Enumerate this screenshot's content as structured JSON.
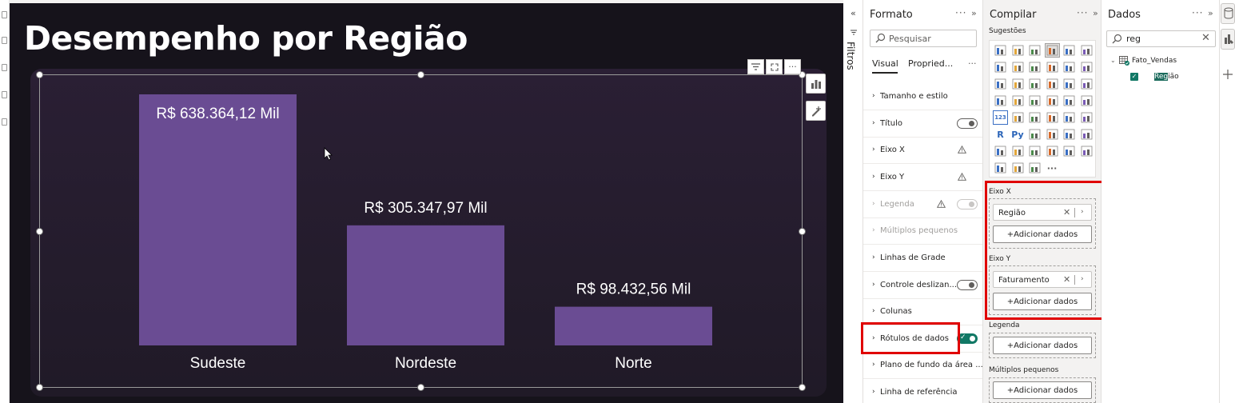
{
  "report": {
    "title": "Desempenho por Região"
  },
  "filters_strip": {
    "label": "Filtros"
  },
  "chart_data": {
    "type": "bar",
    "categories": [
      "Sudeste",
      "Nordeste",
      "Norte"
    ],
    "values": [
      638364.12,
      305347.97,
      98432.56
    ],
    "data_labels": [
      "R$ 638.364,12 Mil",
      "R$ 305.347,97 Mil",
      "R$ 98.432,56 Mil"
    ],
    "title": "",
    "xlabel": "",
    "ylabel": "",
    "ylim": [
      0,
      638364.12
    ],
    "grid": false,
    "legend": "none",
    "bar_color": "#6a4c93",
    "label_color": "#ffffff"
  },
  "format_pane": {
    "title": "Formato",
    "search_placeholder": "Pesquisar",
    "tabs": [
      "Visual",
      "Propried..."
    ],
    "sections": [
      {
        "label": "Tamanho e estilo"
      },
      {
        "label": "Título",
        "control": "toggle-off"
      },
      {
        "label": "Eixo X",
        "control": "warning"
      },
      {
        "label": "Eixo Y",
        "control": "warning"
      },
      {
        "label": "Legenda",
        "control": "warning-toggle-disabled",
        "disabled": true
      },
      {
        "label": "Múltiplos pequenos",
        "disabled": true
      },
      {
        "label": "Linhas de Grade"
      },
      {
        "label": "Controle deslizan...",
        "control": "toggle-off"
      },
      {
        "label": "Colunas"
      },
      {
        "label": "Rótulos de dados",
        "control": "toggle-on",
        "highlighted": true
      },
      {
        "label": "Plano de fundo da área ..."
      },
      {
        "label": "Linha de referência"
      }
    ]
  },
  "build_pane": {
    "title": "Compilar",
    "suggestions_label": "Sugestões",
    "wells": {
      "x_axis": {
        "label": "Eixo X",
        "field": "Região",
        "add_label": "+Adicionar dados"
      },
      "y_axis": {
        "label": "Eixo Y",
        "field": "Faturamento",
        "add_label": "+Adicionar dados"
      },
      "legend": {
        "label": "Legenda",
        "add_label": "+Adicionar dados"
      },
      "small_multiples": {
        "label": "Múltiplos pequenos",
        "add_label": "+Adicionar dados"
      }
    },
    "gallery_text": {
      "py": "Py",
      "r": "R",
      "num": "123",
      "more": "···"
    }
  },
  "data_pane": {
    "title": "Dados",
    "search_value": "reg",
    "table": "Fato_Vendas",
    "field_highlight": "Reg",
    "field_rest": "ião"
  },
  "colors": {
    "accent": "#117865",
    "highlight_border": "#e00000",
    "canvas_bg": "#16131b"
  }
}
